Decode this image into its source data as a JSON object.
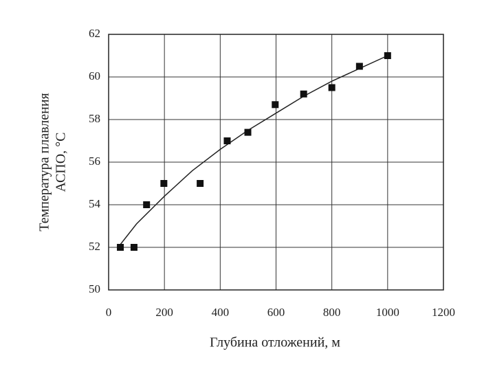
{
  "chart_data": {
    "type": "scatter",
    "xlabel": "Глубина отложений, м",
    "ylabel": [
      "Температура плавления",
      "АСПО, °С"
    ],
    "x": [
      42,
      91,
      136,
      198,
      328,
      425,
      499,
      597,
      699,
      800,
      899,
      1000
    ],
    "values": [
      52,
      52,
      54,
      55,
      55,
      57,
      57.4,
      58.7,
      59.2,
      59.5,
      60.5,
      61
    ],
    "color": "#111111",
    "trendline": {
      "x": [
        40,
        100,
        200,
        300,
        400,
        500,
        600,
        700,
        800,
        900,
        1000
      ],
      "values": [
        52.1,
        53.1,
        54.4,
        55.6,
        56.6,
        57.5,
        58.3,
        59.1,
        59.8,
        60.4,
        61.0
      ]
    },
    "xlim": [
      0,
      1200
    ],
    "xticks": [
      0,
      200,
      400,
      600,
      800,
      1000,
      1200
    ],
    "ylim": [
      50,
      62
    ],
    "yticks": [
      50,
      52,
      54,
      56,
      58,
      60,
      62
    ],
    "grid": true
  }
}
